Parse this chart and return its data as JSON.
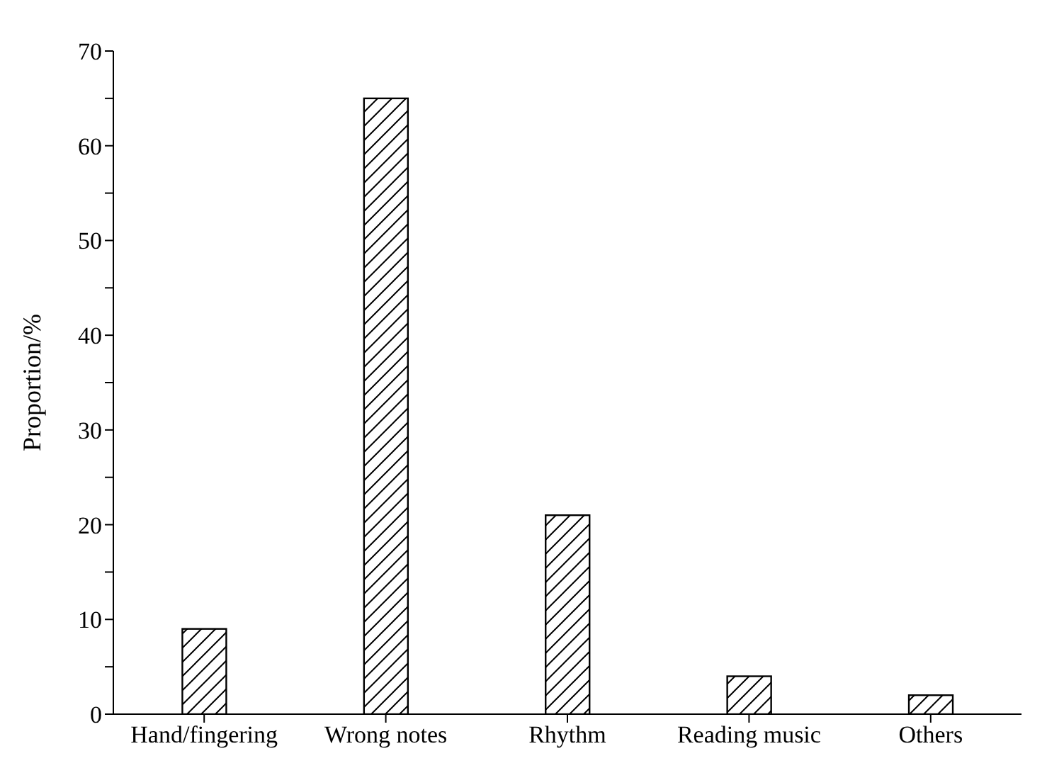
{
  "chart_data": {
    "type": "bar",
    "ylabel": "Proportion/%",
    "categories": [
      "Hand/fingering",
      "Wrong notes",
      "Rhythm",
      "Reading music",
      "Others"
    ],
    "values": [
      9,
      65,
      21,
      4,
      2
    ],
    "color": "#000000",
    "ylim": [
      0,
      70
    ],
    "yticks": [
      0,
      {
        "value": 5,
        "label": null
      },
      10,
      {
        "value": 15,
        "label": null
      },
      20,
      {
        "value": 25,
        "label": null
      },
      30,
      {
        "value": 35,
        "label": null
      },
      40,
      {
        "value": 45,
        "label": null
      },
      50,
      {
        "value": 55,
        "label": null
      },
      60,
      {
        "value": 65,
        "label": null
      },
      70
    ],
    "grid": false
  }
}
